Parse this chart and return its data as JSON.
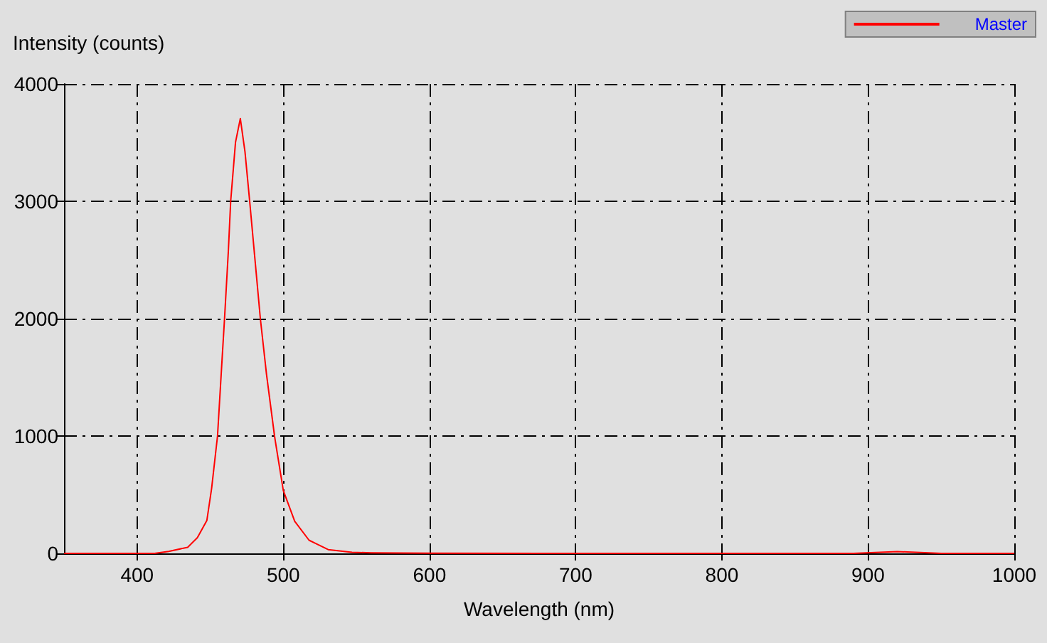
{
  "chart_data": {
    "type": "line",
    "xlabel": "Wavelength (nm)",
    "ylabel": "Intensity (counts)",
    "x": [
      350,
      412,
      421.6,
      434.6,
      441.2,
      447.7,
      451,
      455,
      457.5,
      459.8,
      462.4,
      464,
      467.3,
      470.6,
      473.8,
      477,
      480.4,
      484.3,
      488.5,
      494,
      495,
      500,
      507.8,
      517.6,
      530.7,
      547,
      560,
      600,
      700,
      890,
      920,
      950,
      1000
    ],
    "series": [
      {
        "name": "Master",
        "color": "#ff0000",
        "values": [
          0,
          0,
          17,
          52,
          133,
          280,
          557,
          1000,
          1525,
          2000,
          2574,
          3000,
          3502,
          3705,
          3421,
          3000,
          2534,
          2000,
          1527,
          1000,
          920,
          536,
          274,
          112,
          32,
          9,
          5,
          2,
          0,
          0,
          15,
          0,
          0
        ]
      }
    ],
    "xlim": [
      350,
      1000
    ],
    "xticks": [
      400,
      500,
      600,
      700,
      800,
      900,
      1000
    ],
    "ylim": [
      0,
      4000
    ],
    "yticks": [
      0,
      1000,
      2000,
      3000,
      4000
    ],
    "grid": true,
    "legend": "top right",
    "marker": "none",
    "line_style": "solid"
  }
}
